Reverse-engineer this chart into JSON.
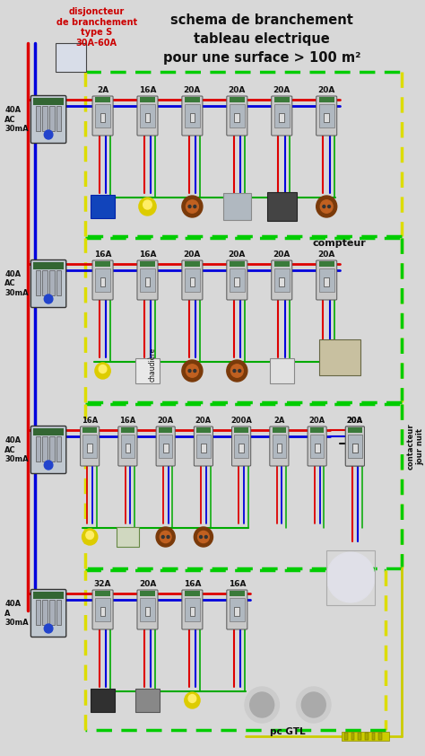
{
  "title_right": "schema de branchement\ntableau electrique\npour une surface > 100 m²",
  "title_left_label": "disjoncteur\nde branchement\ntype S\n30A-60A",
  "bg_color": "#d8d8d8",
  "row1_breakers": [
    "2A",
    "16A",
    "20A",
    "20A",
    "20A",
    "20A"
  ],
  "row2_breakers": [
    "16A",
    "16A",
    "20A",
    "20A",
    "20A",
    "20A"
  ],
  "row3_breakers": [
    "16A",
    "16A",
    "20A",
    "20A",
    "200A",
    "2A",
    "20A",
    "20A"
  ],
  "row4_breakers": [
    "32A",
    "20A",
    "16A",
    "16A"
  ],
  "wire_red": "#dd0000",
  "wire_blue": "#0000dd",
  "wire_green": "#00aa00",
  "wire_yellow_green": "#aacc00",
  "wire_black": "#111111",
  "text_red": "#cc0000",
  "text_black": "#111111",
  "dashed_green": "#00cc00",
  "dashed_yellow": "#dddd00"
}
